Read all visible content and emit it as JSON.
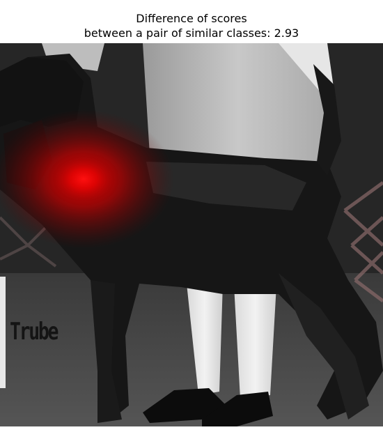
{
  "figure": {
    "title_line1": "Difference of scores",
    "title_line2": "between a pair of similar classes: 2.93"
  },
  "photo": {
    "subject": "dog-photo",
    "watermark_text": "Trube",
    "heatmap_color": "#ff0000",
    "background_color": "#2a2a2a"
  }
}
